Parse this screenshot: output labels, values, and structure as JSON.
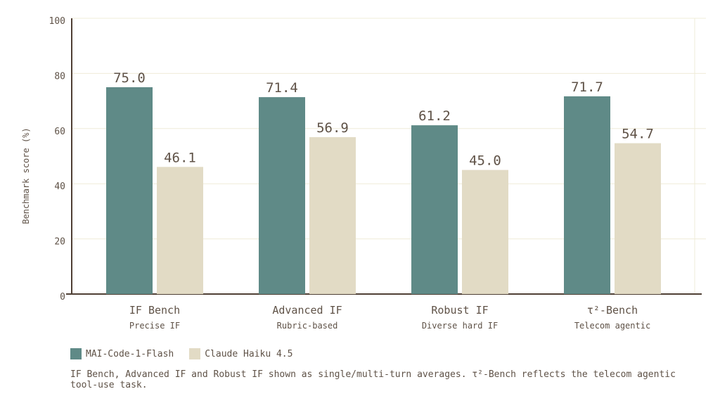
{
  "chart_data": {
    "type": "bar",
    "title": "",
    "xlabel": "",
    "ylabel": "Benchmark score (%)",
    "ylim": [
      0,
      100
    ],
    "yticks": [
      0,
      20,
      40,
      60,
      80,
      100
    ],
    "grid": true,
    "legend_position": "bottom-left",
    "categories": [
      "IF Bench",
      "Advanced IF",
      "Robust IF",
      "τ²-Bench"
    ],
    "category_subtitles": [
      "Precise IF",
      "Rubric-based",
      "Diverse hard IF",
      "Telecom agentic"
    ],
    "series": [
      {
        "name": "MAI-Code-1-Flash",
        "color": "#5f8a87",
        "values": [
          75.0,
          71.4,
          61.2,
          71.7
        ],
        "labels": [
          "75.0",
          "71.4",
          "61.2",
          "71.7"
        ]
      },
      {
        "name": "Claude Haiku 4.5",
        "color": "#e2dbc5",
        "values": [
          46.1,
          56.9,
          45.0,
          54.7
        ],
        "labels": [
          "46.1",
          "56.9",
          "45.0",
          "54.7"
        ]
      }
    ]
  },
  "colors": {
    "axis": "#4f3f34",
    "grid": "#efecd8",
    "text": "#5f5247"
  },
  "footnote": "IF Bench, Advanced IF and Robust IF shown as single/multi-turn averages.  τ²-Bench reflects the telecom agentic tool-use task."
}
